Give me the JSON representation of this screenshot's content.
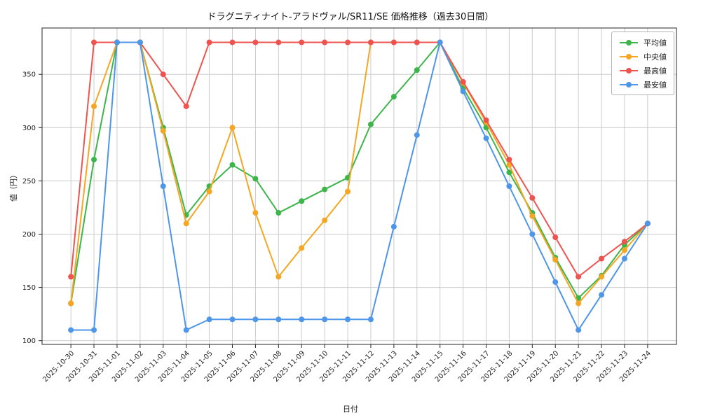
{
  "chart_data": {
    "type": "line",
    "title": "ドラグニティナイト-アラドヴァル/SR11/SE 価格推移（過去30日間）",
    "xlabel": "日付",
    "ylabel": "値（円）",
    "grid": true,
    "legend_position": "upper right",
    "ylim": [
      96.5,
      393.5
    ],
    "yticks": [
      100,
      150,
      200,
      250,
      300,
      350
    ],
    "x": [
      "2025-10-30",
      "2025-10-31",
      "2025-11-01",
      "2025-11-02",
      "2025-11-03",
      "2025-11-04",
      "2025-11-05",
      "2025-11-06",
      "2025-11-07",
      "2025-11-08",
      "2025-11-09",
      "2025-11-10",
      "2025-11-11",
      "2025-11-12",
      "2025-11-13",
      "2025-11-14",
      "2025-11-15",
      "2025-11-16",
      "2025-11-17",
      "2025-11-18",
      "2025-11-19",
      "2025-11-20",
      "2025-11-21",
      "2025-11-22",
      "2025-11-23",
      "2025-11-24"
    ],
    "series": [
      {
        "name": "平均値",
        "color": "#3CB54A",
        "values": [
          135,
          270,
          380,
          380,
          300,
          218,
          245,
          265,
          252,
          220,
          231,
          242,
          253,
          303,
          329,
          354,
          380,
          337,
          300,
          258,
          220,
          178,
          140,
          161,
          190,
          210
        ]
      },
      {
        "name": "中央値",
        "color": "#F5A623",
        "values": [
          135,
          320,
          380,
          380,
          297,
          210,
          240,
          300,
          220,
          160,
          187,
          213,
          240,
          380,
          380,
          380,
          380,
          342,
          305,
          265,
          217,
          176,
          135,
          160,
          185,
          210
        ]
      },
      {
        "name": "最高値",
        "color": "#EF5350",
        "values": [
          160,
          380,
          380,
          380,
          350,
          320,
          380,
          380,
          380,
          380,
          380,
          380,
          380,
          380,
          380,
          380,
          380,
          343,
          307,
          270,
          234,
          197,
          160,
          177,
          193,
          210
        ]
      },
      {
        "name": "最安値",
        "color": "#4E96E8",
        "values": [
          110,
          110,
          380,
          380,
          245,
          110,
          120,
          120,
          120,
          120,
          120,
          120,
          120,
          120,
          207,
          293,
          380,
          334,
          290,
          245,
          200,
          155,
          110,
          143,
          177,
          210
        ]
      }
    ]
  }
}
